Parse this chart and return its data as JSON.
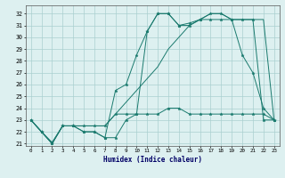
{
  "xlabel": "Humidex (Indice chaleur)",
  "lines": [
    {
      "x": [
        0,
        1,
        2,
        3,
        4,
        5,
        6,
        7,
        8,
        9,
        10,
        11,
        12,
        13,
        14,
        15,
        16,
        17,
        18,
        19,
        20,
        21,
        22,
        23
      ],
      "y": [
        23,
        22,
        21.1,
        22.5,
        22.5,
        22.5,
        22.5,
        22.5,
        23.5,
        23.5,
        23.5,
        23.5,
        23.5,
        24.0,
        24.0,
        23.5,
        23.5,
        23.5,
        23.5,
        23.5,
        23.5,
        23.5,
        23.5,
        23.0
      ],
      "marker": true
    },
    {
      "x": [
        0,
        1,
        2,
        3,
        4,
        5,
        6,
        7,
        8,
        9,
        10,
        11,
        12,
        13,
        14,
        15,
        16,
        17,
        18,
        19,
        20,
        21,
        22,
        23
      ],
      "y": [
        23,
        22,
        21.0,
        22.5,
        22.5,
        22.5,
        22.5,
        22.5,
        23.5,
        24.5,
        25.5,
        26.5,
        27.5,
        29.0,
        30.0,
        31.0,
        31.5,
        32.0,
        32.0,
        31.5,
        31.5,
        31.5,
        31.5,
        23.0
      ],
      "marker": false
    },
    {
      "x": [
        0,
        1,
        2,
        3,
        4,
        5,
        6,
        7,
        8,
        9,
        10,
        11,
        12,
        13,
        14,
        15,
        16,
        17,
        18,
        19,
        20,
        21,
        22,
        23
      ],
      "y": [
        23,
        22,
        21.0,
        22.5,
        22.5,
        22.0,
        22.0,
        21.5,
        25.5,
        26.0,
        28.5,
        30.5,
        32.0,
        32.0,
        31.0,
        31.0,
        31.5,
        32.0,
        32.0,
        31.5,
        28.5,
        27.0,
        24.0,
        23.0
      ],
      "marker": true
    },
    {
      "x": [
        0,
        1,
        2,
        3,
        4,
        5,
        6,
        7,
        8,
        9,
        10,
        11,
        12,
        13,
        14,
        15,
        16,
        17,
        18,
        19,
        20,
        21,
        22,
        23
      ],
      "y": [
        23,
        22,
        21.0,
        22.5,
        22.5,
        22.0,
        22.0,
        21.5,
        21.5,
        23.0,
        23.5,
        30.5,
        32.0,
        32.0,
        31.0,
        31.2,
        31.5,
        31.5,
        31.5,
        31.5,
        31.5,
        31.5,
        23.0,
        23.0
      ],
      "marker": true
    }
  ],
  "line_color": "#1a7a6e",
  "bg_color": "#ddf0f0",
  "grid_color": "#aacfcf",
  "ylim": [
    20.8,
    32.7
  ],
  "xlim": [
    -0.5,
    23.5
  ],
  "yticks": [
    21,
    22,
    23,
    24,
    25,
    26,
    27,
    28,
    29,
    30,
    31,
    32
  ],
  "xticks": [
    0,
    1,
    2,
    3,
    4,
    5,
    6,
    7,
    8,
    9,
    10,
    11,
    12,
    13,
    14,
    15,
    16,
    17,
    18,
    19,
    20,
    21,
    22,
    23
  ]
}
